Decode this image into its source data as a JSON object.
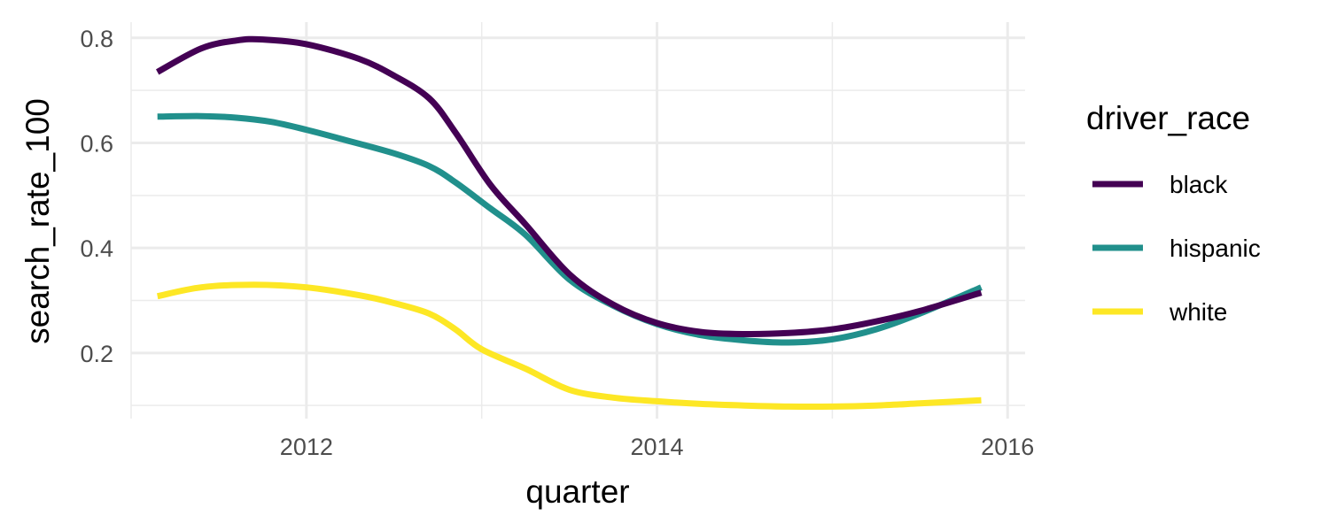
{
  "chart_data": {
    "type": "line",
    "title": "",
    "xlabel": "quarter",
    "ylabel": "search_rate_100",
    "xlim": [
      2011.0,
      2016.1
    ],
    "ylim": [
      0.075,
      0.83
    ],
    "x_ticks": [
      2012,
      2014,
      2016
    ],
    "x_minor_ticks": [
      2011,
      2013,
      2015
    ],
    "y_ticks": [
      0.2,
      0.4,
      0.6,
      0.8
    ],
    "y_minor_ticks": [
      0.1,
      0.3,
      0.5,
      0.7
    ],
    "grid": true,
    "legend": {
      "title": "driver_race",
      "position": "right"
    },
    "series": [
      {
        "name": "black",
        "color": "#440154",
        "x": [
          2011.15,
          2011.4,
          2011.6,
          2011.75,
          2012.0,
          2012.3,
          2012.5,
          2012.7,
          2012.85,
          2013.05,
          2013.25,
          2013.5,
          2013.75,
          2014.0,
          2014.25,
          2014.5,
          2014.75,
          2015.0,
          2015.25,
          2015.5,
          2015.85
        ],
        "y": [
          0.735,
          0.78,
          0.795,
          0.797,
          0.788,
          0.76,
          0.728,
          0.685,
          0.62,
          0.52,
          0.445,
          0.35,
          0.292,
          0.257,
          0.24,
          0.236,
          0.238,
          0.245,
          0.26,
          0.28,
          0.315
        ]
      },
      {
        "name": "hispanic",
        "color": "#21908C",
        "x": [
          2011.15,
          2011.4,
          2011.6,
          2011.8,
          2012.0,
          2012.25,
          2012.5,
          2012.7,
          2012.85,
          2013.05,
          2013.25,
          2013.5,
          2013.75,
          2014.0,
          2014.25,
          2014.5,
          2014.75,
          2015.0,
          2015.25,
          2015.5,
          2015.85
        ],
        "y": [
          0.65,
          0.651,
          0.648,
          0.64,
          0.625,
          0.603,
          0.58,
          0.556,
          0.525,
          0.475,
          0.425,
          0.34,
          0.29,
          0.255,
          0.234,
          0.224,
          0.22,
          0.226,
          0.245,
          0.275,
          0.325
        ]
      },
      {
        "name": "white",
        "color": "#FDE725",
        "x": [
          2011.15,
          2011.4,
          2011.7,
          2012.0,
          2012.3,
          2012.5,
          2012.7,
          2012.85,
          2013.0,
          2013.25,
          2013.5,
          2013.75,
          2014.0,
          2014.25,
          2014.5,
          2014.75,
          2015.0,
          2015.25,
          2015.5,
          2015.85
        ],
        "y": [
          0.308,
          0.325,
          0.33,
          0.325,
          0.31,
          0.295,
          0.275,
          0.245,
          0.207,
          0.17,
          0.13,
          0.115,
          0.108,
          0.103,
          0.1,
          0.098,
          0.098,
          0.1,
          0.104,
          0.11
        ]
      }
    ]
  }
}
